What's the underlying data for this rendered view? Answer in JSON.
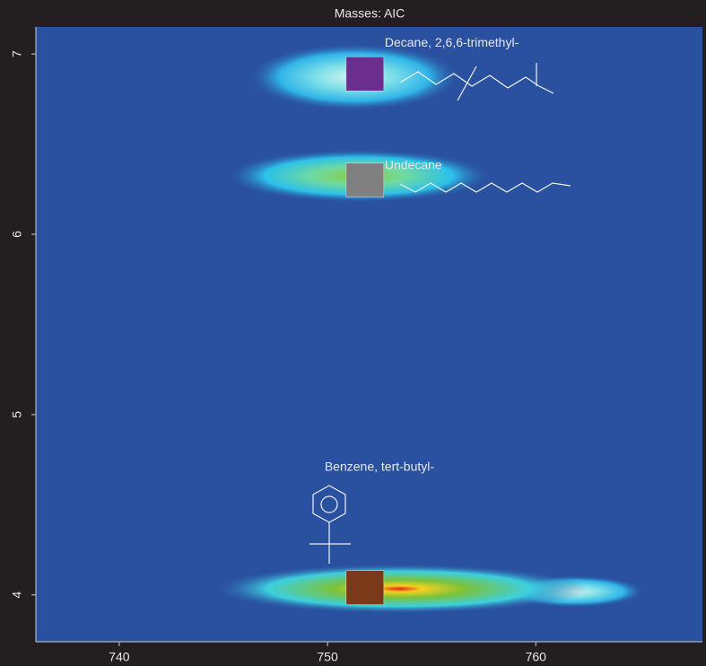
{
  "chart_data": {
    "type": "scatter",
    "title": "Masses:  AIC",
    "peaks": [
      {
        "name": "Decane, 2,6,6-trimethyl-",
        "x": 751.8,
        "y": 6.89,
        "color": "#6b2d8e"
      },
      {
        "name": "Undecane",
        "x": 751.8,
        "y": 6.3,
        "color": "#808080"
      },
      {
        "name": "Benzene, tert-butyl-",
        "x": 751.8,
        "y": 4.04,
        "color": "#7a3a1a"
      }
    ],
    "xlim": [
      736,
      768
    ],
    "ylim": [
      3.74,
      7.15
    ],
    "xticks": [
      740,
      750,
      760
    ],
    "yticks": [
      4,
      5,
      6,
      7
    ]
  }
}
